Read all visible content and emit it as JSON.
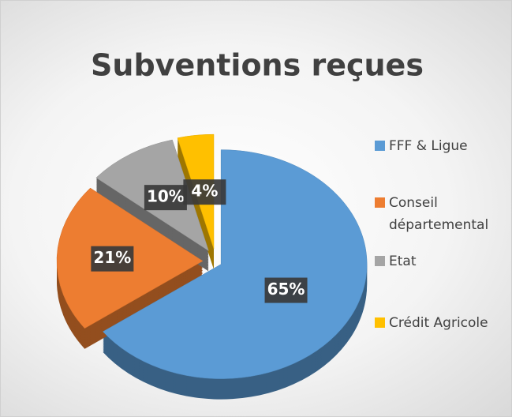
{
  "chart_data": {
    "type": "pie",
    "title": "Subventions reçues",
    "categories": [
      "FFF & Ligue",
      "Conseil départemental",
      "Etat",
      "Crédit Agricole"
    ],
    "values": [
      65,
      21,
      10,
      4
    ],
    "value_labels": [
      "65%",
      "21%",
      "10%",
      "4%"
    ],
    "colors": [
      "#5b9bd5",
      "#ed7d31",
      "#a5a5a5",
      "#ffc000"
    ],
    "legend": "right"
  }
}
